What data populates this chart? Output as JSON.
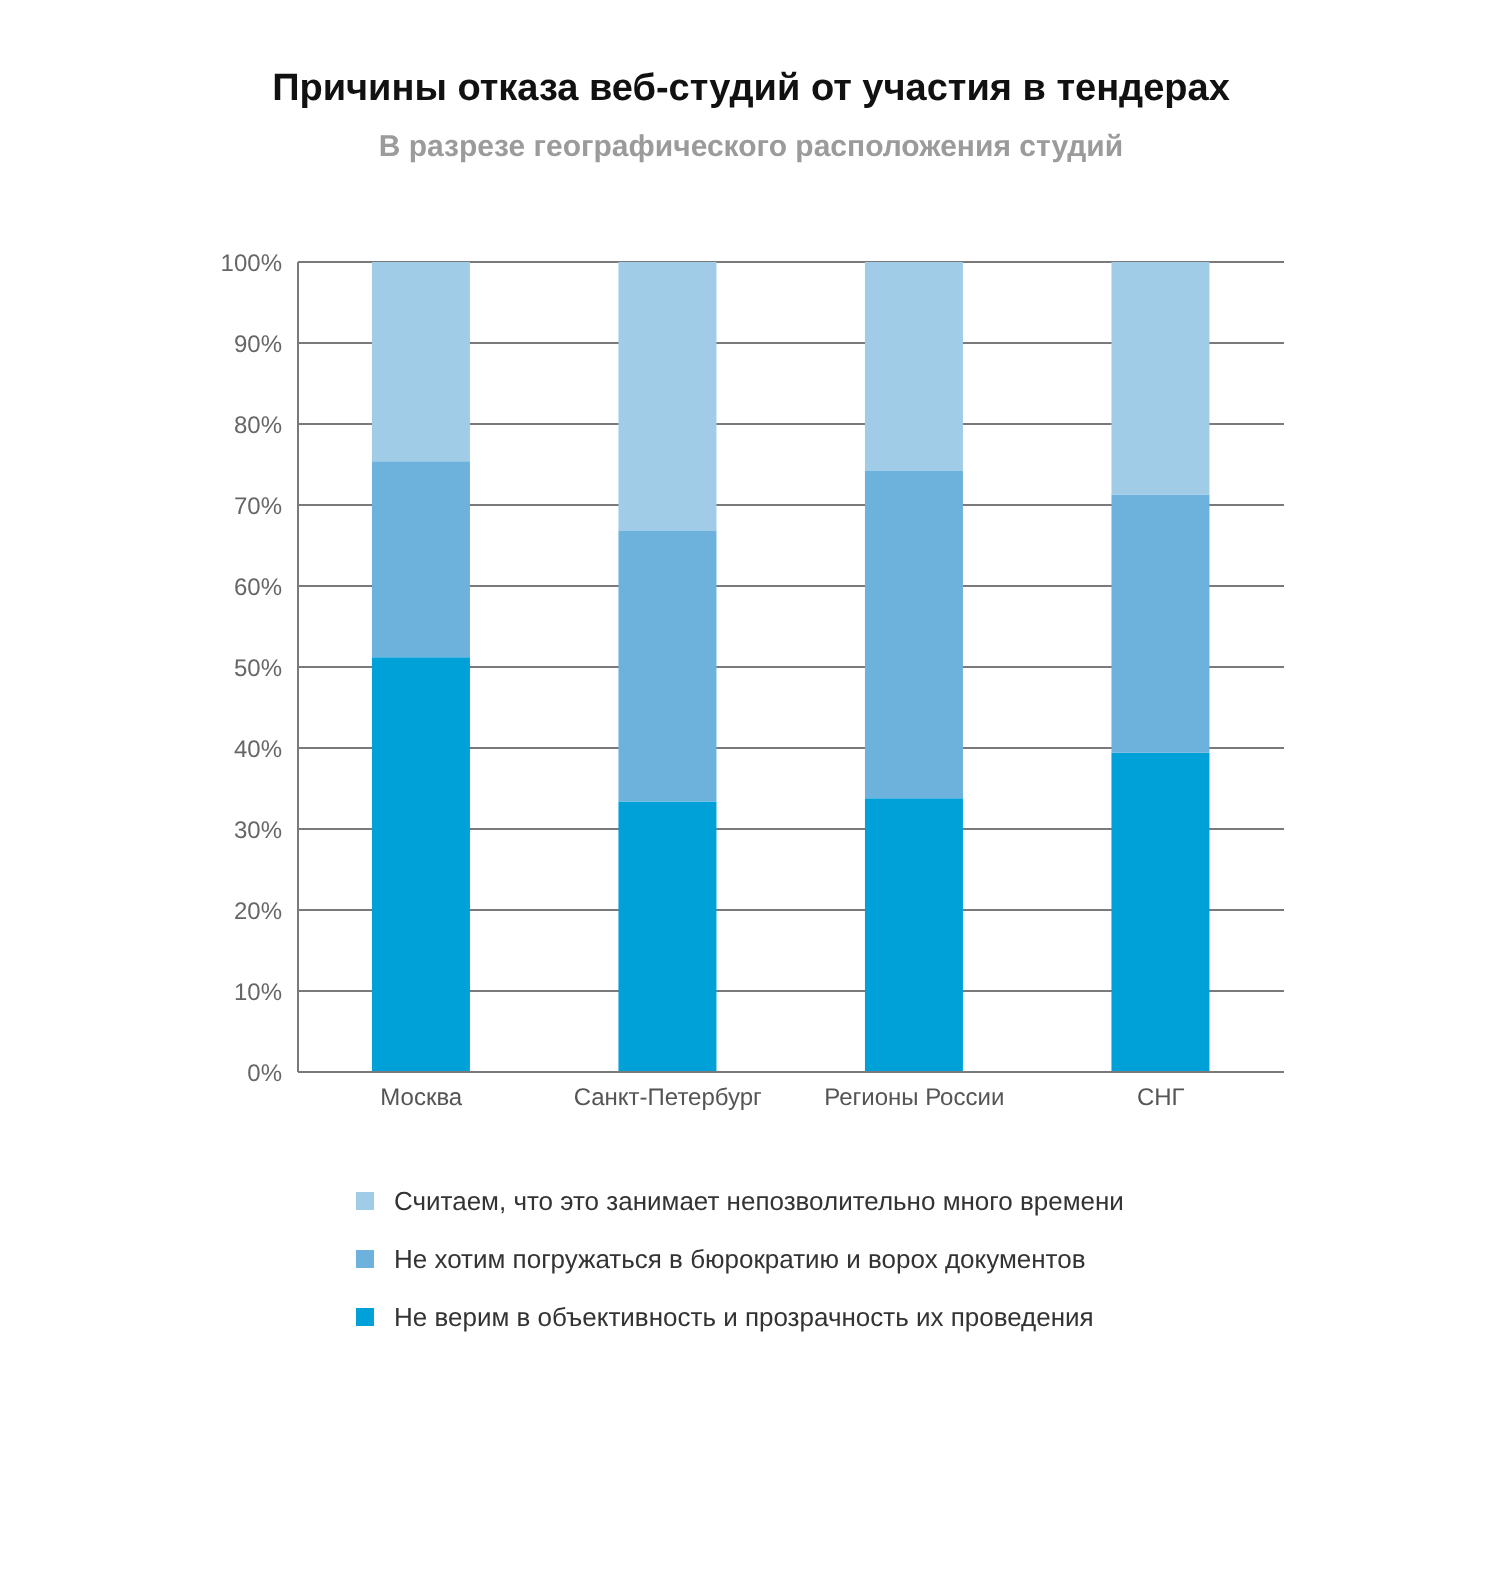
{
  "chart_data": {
    "type": "bar",
    "title": "Причины отказа веб-студий от участия в тендерах",
    "subtitle": "В разрезе географического расположения студий",
    "categories": [
      "Москва",
      "Санкт-Петербург",
      "Регионы России",
      "СНГ"
    ],
    "stacked": true,
    "series": [
      {
        "name": "Не верим в объективность и прозрачность их проведения",
        "color": "#00a1d9",
        "values": [
          51.2,
          33.4,
          33.8,
          39.4
        ]
      },
      {
        "name": "Не хотим погружаться в бюрократию и ворох документов",
        "color": "#6cb2dc",
        "values": [
          24.2,
          33.4,
          40.4,
          31.9
        ]
      },
      {
        "name": "Считаем, что это занимает непозволительно много времени",
        "color": "#a1cce7",
        "values": [
          24.6,
          33.2,
          25.8,
          28.7
        ]
      }
    ],
    "ylim": [
      0,
      100
    ],
    "yticks": [
      {
        "value": 0,
        "label": "0%"
      },
      {
        "value": 10,
        "label": "10%"
      },
      {
        "value": 20,
        "label": "20%"
      },
      {
        "value": 30,
        "label": "30%"
      },
      {
        "value": 40,
        "label": "40%"
      },
      {
        "value": 50,
        "label": "50%"
      },
      {
        "value": 60,
        "label": "60%"
      },
      {
        "value": 70,
        "label": "70%"
      },
      {
        "value": 80,
        "label": "80%"
      },
      {
        "value": 90,
        "label": "90%"
      },
      {
        "value": 100,
        "label": "100%"
      }
    ],
    "grid": "y",
    "legend": "bottom"
  }
}
